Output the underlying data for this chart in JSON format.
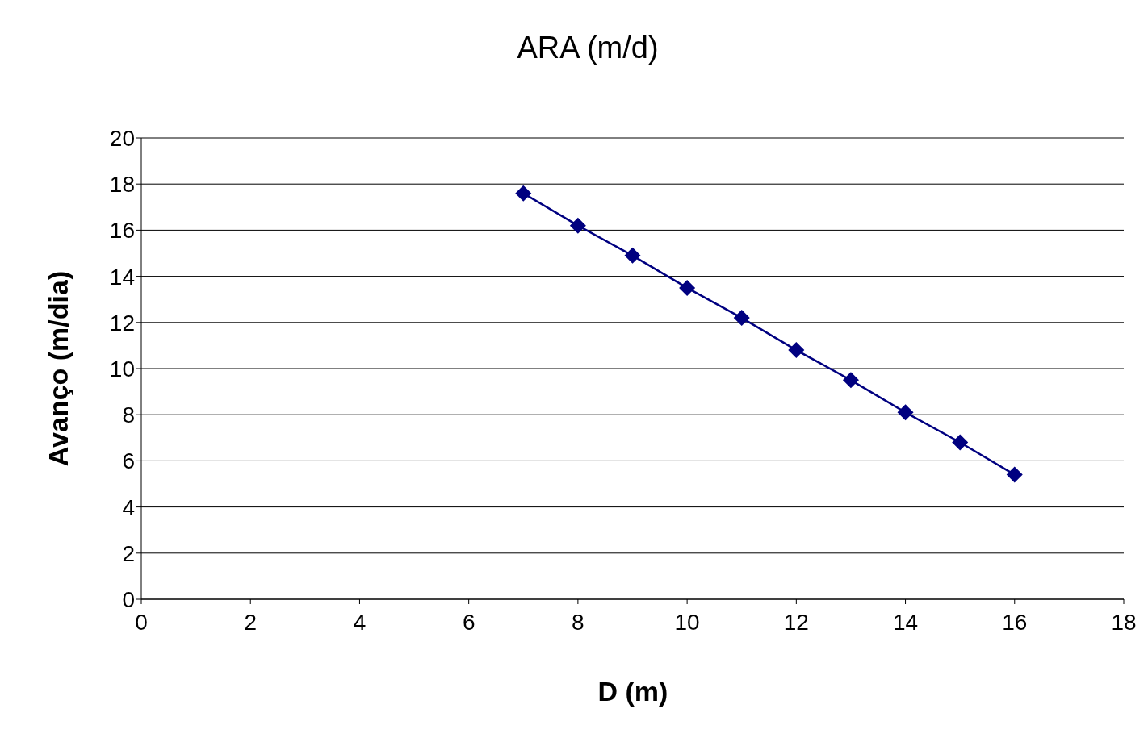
{
  "chart_data": {
    "type": "line",
    "title": "ARA (m/d)",
    "xlabel": "D (m)",
    "ylabel": "Avanço (m/dia)",
    "x": [
      7,
      8,
      9,
      10,
      11,
      12,
      13,
      14,
      15,
      16
    ],
    "series": [
      {
        "color": "#000080",
        "values": [
          17.6,
          16.2,
          14.9,
          13.5,
          12.2,
          10.8,
          9.5,
          8.1,
          6.8,
          5.4
        ]
      }
    ],
    "xlim": [
      0,
      18
    ],
    "xticks": [
      0,
      2,
      4,
      6,
      8,
      10,
      12,
      14,
      16,
      18
    ],
    "ylim": [
      0,
      20
    ],
    "yticks": [
      0,
      2,
      4,
      6,
      8,
      10,
      12,
      14,
      16,
      18,
      20
    ],
    "grid": "y",
    "legend": false,
    "marker": "diamond",
    "line_style": "solid"
  }
}
